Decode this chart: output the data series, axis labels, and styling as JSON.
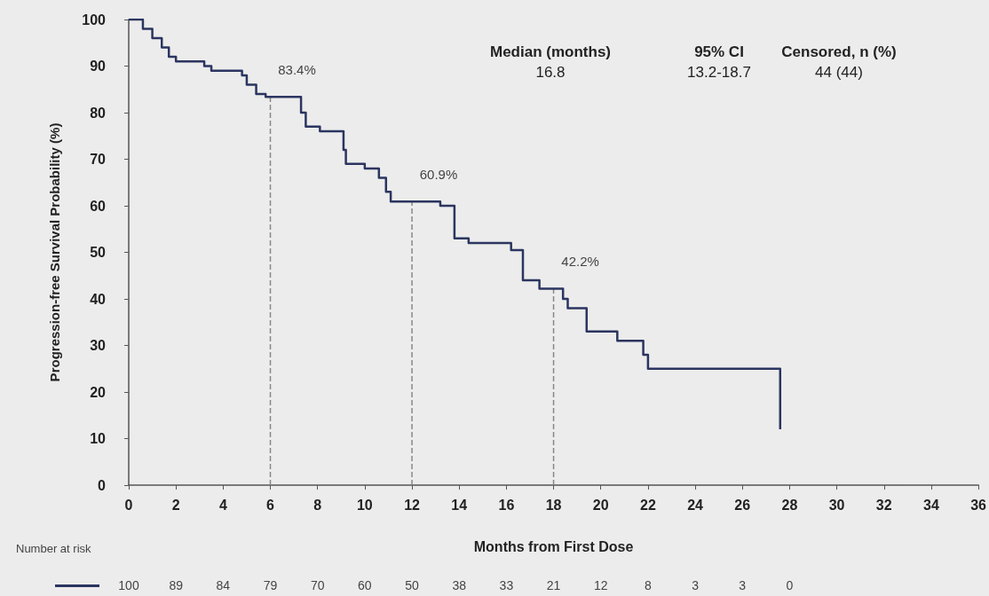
{
  "chart_data": {
    "type": "step",
    "xlabel": "Months from First Dose",
    "ylabel": "Progression-free Survival Probability (%)",
    "x": [
      0,
      0.6,
      1.0,
      1.4,
      1.7,
      2.0,
      3.2,
      3.5,
      4.8,
      5.0,
      5.4,
      5.8,
      7.3,
      7.5,
      8.1,
      9.1,
      9.2,
      10.0,
      10.6,
      10.9,
      11.1,
      13.2,
      13.8,
      14.4,
      16.2,
      16.7,
      17.4,
      18.4,
      18.6,
      19.4,
      20.7,
      21.8,
      22.0,
      27.6,
      27.6
    ],
    "series": [
      {
        "color": "#2b3560",
        "values": [
          100,
          98,
          96,
          94,
          92,
          91,
          90,
          89,
          88,
          86,
          84,
          83.4,
          80,
          77,
          76,
          72,
          69,
          68,
          66,
          63,
          60.9,
          60,
          53,
          52,
          50.5,
          44,
          42.2,
          40,
          38,
          33,
          31,
          28,
          25,
          25,
          12
        ]
      }
    ],
    "xlim": [
      0,
      36
    ],
    "xticks": [
      0,
      2,
      4,
      6,
      8,
      10,
      12,
      14,
      16,
      18,
      20,
      22,
      24,
      26,
      28,
      30,
      32,
      34,
      36
    ],
    "ylim": [
      0,
      100
    ],
    "yticks": [
      0,
      10,
      20,
      30,
      40,
      50,
      60,
      70,
      80,
      90,
      100
    ],
    "ref_lines": [
      {
        "axis": "x",
        "value": 6,
        "color": "#888888",
        "line_style": "dashed"
      },
      {
        "axis": "x",
        "value": 12,
        "color": "#888888",
        "line_style": "dashed"
      },
      {
        "axis": "x",
        "value": 18,
        "color": "#888888",
        "line_style": "dashed"
      }
    ],
    "annotations": [
      {
        "text": "83.4%",
        "x": 6,
        "y": 83.4
      },
      {
        "text": "60.9%",
        "x": 12,
        "y": 60.9
      },
      {
        "text": "42.2%",
        "x": 18,
        "y": 42.2
      },
      "Median (months)",
      "95% CI",
      "Censored, n (%)",
      "16.8",
      "13.2-18.7",
      "44 (44)",
      "Number at risk",
      "100",
      "89",
      "84",
      "79",
      "70",
      "60",
      "50",
      "38",
      "33",
      "21",
      "12",
      "8",
      "3",
      "3",
      "0"
    ],
    "grid": false
  }
}
